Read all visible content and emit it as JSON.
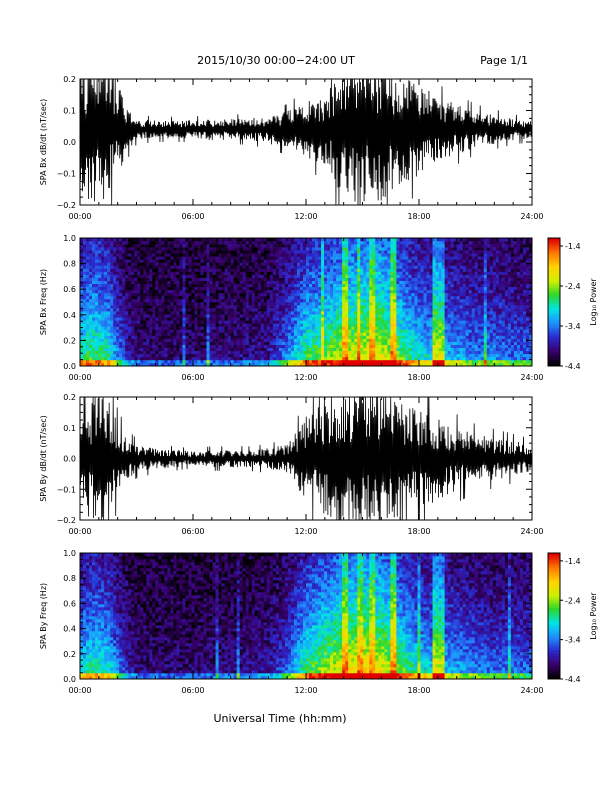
{
  "header": {
    "title": "2015/10/30  00:00−24:00 UT",
    "page_label": "Page 1/1"
  },
  "footer": {
    "xlabel": "Universal Time (hh:mm)"
  },
  "colors": {
    "background": "#ffffff",
    "trace": "#000000",
    "colormap": [
      "#000000",
      "#3a006e",
      "#2a2ad0",
      "#1e90ff",
      "#00e5e5",
      "#2bd62b",
      "#ccf000",
      "#ffd400",
      "#ff7a00",
      "#e00000"
    ]
  },
  "chart_data": [
    {
      "type": "line",
      "title": "",
      "ylabel": "SPA Bx dB/dt (nT/sec)",
      "xlabel": "",
      "x_ticks": [
        "00:00",
        "06:00",
        "12:00",
        "18:00",
        "24:00"
      ],
      "y_ticks": [
        "0.2",
        "0.1",
        "0.0",
        "−0.1",
        "−0.2"
      ],
      "xlim_hours": [
        0,
        24
      ],
      "ylim": [
        -0.2,
        0.2
      ],
      "series": [
        {
          "envelope": {
            "hours": [
              0,
              0.5,
              1,
              1.5,
              2,
              2.5,
              3,
              4,
              5,
              6,
              7,
              8,
              9,
              10,
              11,
              12,
              13,
              14,
              15,
              16,
              17,
              18,
              19,
              20,
              21,
              22,
              23,
              24
            ],
            "amplitude": [
              0.17,
              0.2,
              0.2,
              0.2,
              0.14,
              0.06,
              0.03,
              0.025,
              0.025,
              0.025,
              0.03,
              0.03,
              0.03,
              0.04,
              0.05,
              0.08,
              0.1,
              0.2,
              0.2,
              0.2,
              0.15,
              0.13,
              0.09,
              0.07,
              0.05,
              0.04,
              0.03,
              0.025
            ],
            "offset": 0.04
          }
        }
      ]
    },
    {
      "type": "heatmap",
      "title": "",
      "ylabel": "SPA Bx Freq (Hz)",
      "xlabel": "",
      "x_ticks": [
        "00:00",
        "06:00",
        "12:00",
        "18:00",
        "24:00"
      ],
      "y_ticks": [
        "1.0",
        "0.8",
        "0.6",
        "0.4",
        "0.2",
        "0.0"
      ],
      "xlim_hours": [
        0,
        24
      ],
      "ylim": [
        0,
        1.0
      ],
      "colorbar": {
        "label": "Log₁₀ Power",
        "ticks": [
          "-1.4",
          "-2.4",
          "-3.4",
          "-4.4"
        ],
        "range": [
          -4.4,
          -1.2
        ]
      },
      "activity_profile": {
        "hours": [
          0,
          0.5,
          1,
          1.5,
          2,
          2.5,
          3,
          4,
          5,
          6,
          7,
          8,
          9,
          10,
          11,
          12,
          13,
          14,
          15,
          16,
          17,
          18,
          19,
          20,
          21,
          22,
          23,
          24
        ],
        "level": [
          0.55,
          0.6,
          0.6,
          0.55,
          0.35,
          0.2,
          0.1,
          0.08,
          0.08,
          0.08,
          0.1,
          0.1,
          0.12,
          0.15,
          0.35,
          0.6,
          0.65,
          0.75,
          0.8,
          0.8,
          0.65,
          0.5,
          0.45,
          0.4,
          0.35,
          0.35,
          0.3,
          0.3
        ]
      },
      "vertical_streaks_hours": [
        14.1,
        14.8,
        15.5,
        16.6,
        18.9,
        19.2
      ]
    },
    {
      "type": "line",
      "title": "",
      "ylabel": "SPA By dB/dt (nT/sec)",
      "xlabel": "",
      "x_ticks": [
        "00:00",
        "06:00",
        "12:00",
        "18:00",
        "24:00"
      ],
      "y_ticks": [
        "0.2",
        "0.1",
        "0.0",
        "−0.1",
        "−0.2"
      ],
      "xlim_hours": [
        0,
        24
      ],
      "ylim": [
        -0.2,
        0.2
      ],
      "series": [
        {
          "envelope": {
            "hours": [
              0,
              0.5,
              1,
              1.5,
              2,
              2.5,
              3,
              4,
              5,
              6,
              7,
              8,
              9,
              10,
              11,
              12,
              13,
              14,
              15,
              16,
              17,
              18,
              19,
              20,
              21,
              22,
              23,
              24
            ],
            "amplitude": [
              0.12,
              0.17,
              0.2,
              0.18,
              0.1,
              0.06,
              0.04,
              0.03,
              0.025,
              0.02,
              0.025,
              0.025,
              0.025,
              0.03,
              0.04,
              0.12,
              0.16,
              0.2,
              0.2,
              0.2,
              0.16,
              0.14,
              0.12,
              0.09,
              0.07,
              0.06,
              0.05,
              0.04
            ],
            "offset": 0.0
          }
        }
      ]
    },
    {
      "type": "heatmap",
      "title": "",
      "ylabel": "SPA By Freq (Hz)",
      "xlabel": "",
      "x_ticks": [
        "00:00",
        "06:00",
        "12:00",
        "18:00",
        "24:00"
      ],
      "y_ticks": [
        "1.0",
        "0.8",
        "0.6",
        "0.4",
        "0.2",
        "0.0"
      ],
      "xlim_hours": [
        0,
        24
      ],
      "ylim": [
        0,
        1.0
      ],
      "colorbar": {
        "label": "Log₁₀ Power",
        "ticks": [
          "-1.4",
          "-2.4",
          "-3.4",
          "-4.4"
        ],
        "range": [
          -4.4,
          -1.2
        ]
      },
      "activity_profile": {
        "hours": [
          0,
          0.5,
          1,
          1.5,
          2,
          2.5,
          3,
          4,
          5,
          6,
          7,
          8,
          9,
          10,
          11,
          12,
          13,
          14,
          15,
          16,
          17,
          18,
          19,
          20,
          21,
          22,
          23,
          24
        ],
        "level": [
          0.45,
          0.55,
          0.55,
          0.5,
          0.35,
          0.2,
          0.1,
          0.08,
          0.08,
          0.08,
          0.1,
          0.1,
          0.12,
          0.15,
          0.3,
          0.6,
          0.7,
          0.8,
          0.85,
          0.8,
          0.65,
          0.5,
          0.45,
          0.4,
          0.35,
          0.3,
          0.3,
          0.3
        ]
      },
      "vertical_streaks_hours": [
        14.1,
        14.8,
        15.5,
        16.6,
        18.9,
        19.2
      ]
    }
  ]
}
